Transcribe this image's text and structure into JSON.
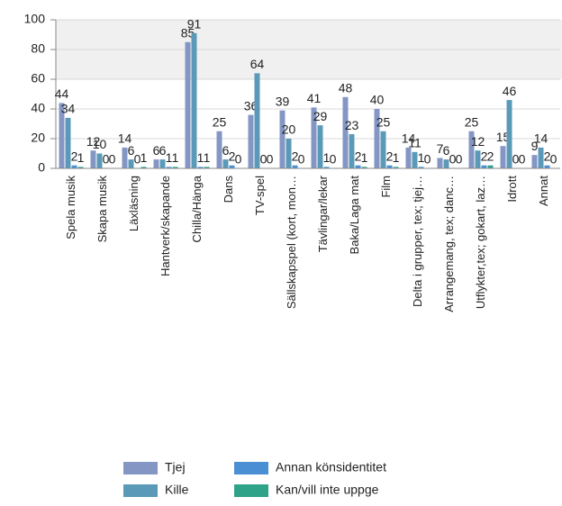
{
  "chart_data": {
    "type": "bar",
    "categories": [
      "Spela musik",
      "Skapa musik",
      "Läxläsning",
      "Hantverk/skapande",
      "Chilla/Hänga",
      "Dans",
      "TV-spel",
      "Sällskapspel  (kort, mon…",
      "Tävlingar/lekar",
      "Baka/Laga mat",
      "Film",
      "Delta i grupper, tex; tjej…",
      "Arrangemang, tex; danc…",
      "Utflykter,tex; gokart, laz…",
      "Idrott",
      "Annat"
    ],
    "series": [
      {
        "name": "Tjej",
        "color": "#8496c4",
        "values": [
          44,
          12,
          14,
          6,
          85,
          25,
          36,
          39,
          41,
          48,
          40,
          14,
          7,
          25,
          15,
          9
        ]
      },
      {
        "name": "Kille",
        "color": "#5a9ab8",
        "values": [
          34,
          10,
          6,
          6,
          91,
          6,
          64,
          20,
          29,
          23,
          25,
          11,
          6,
          12,
          46,
          14
        ]
      },
      {
        "name": "Annan könsidentitet",
        "color": "#4a8fd4",
        "values": [
          2,
          0,
          0,
          1,
          1,
          2,
          0,
          2,
          1,
          2,
          2,
          1,
          0,
          2,
          0,
          2
        ]
      },
      {
        "name": "Kan/vill inte uppge",
        "color": "#2fa38a",
        "values": [
          1,
          0,
          1,
          1,
          1,
          0,
          0,
          0,
          0,
          1,
          1,
          0,
          0,
          2,
          0,
          0
        ]
      }
    ],
    "ylim": [
      0,
      100
    ],
    "yticks": [
      0,
      20,
      40,
      60,
      80,
      100
    ],
    "grid": true
  }
}
